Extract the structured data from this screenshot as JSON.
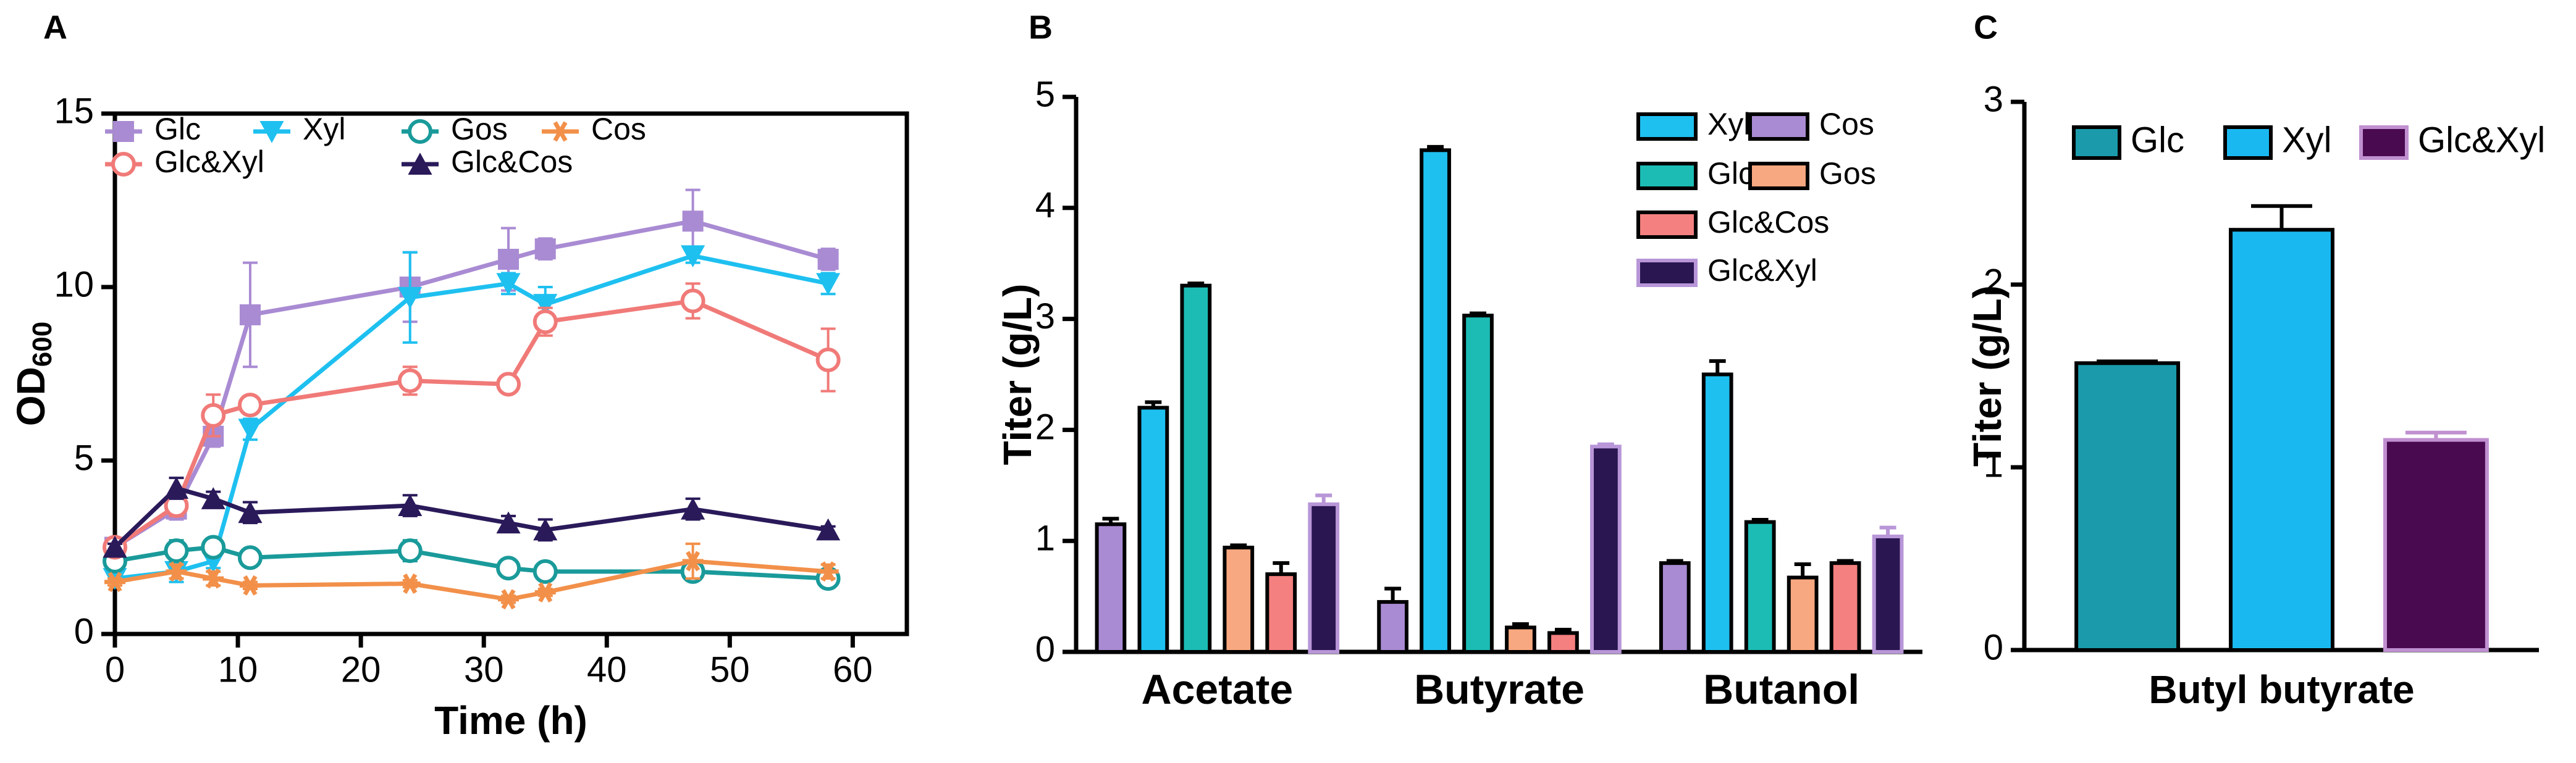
{
  "chart_data": [
    {
      "type": "line",
      "panel": "A",
      "xlabel": "Time (h)",
      "ylabel": "OD",
      "ylabel_sub": "600",
      "x": [
        0,
        5,
        8,
        11,
        24,
        32,
        35,
        47,
        58
      ],
      "xlim": [
        0,
        64.4
      ],
      "xticks": [
        0,
        10,
        20,
        30,
        40,
        50,
        60
      ],
      "ylim": [
        0,
        15
      ],
      "yticks": [
        0,
        5,
        10,
        15
      ],
      "series": [
        {
          "name": "Glc",
          "color": "#a98bd3",
          "marker": "square",
          "values": [
            2.5,
            3.6,
            5.7,
            9.2,
            10.0,
            10.8,
            11.1,
            11.9,
            10.8
          ],
          "errors": [
            0.1,
            0.3,
            0.3,
            1.5,
            1.0,
            0.9,
            0.3,
            0.9,
            0.3
          ]
        },
        {
          "name": "Xyl",
          "color": "#1ec0f0",
          "marker": "triangle-down",
          "values": [
            1.6,
            1.8,
            2.1,
            5.9,
            9.7,
            10.1,
            9.5,
            10.9,
            10.1
          ],
          "errors": [
            0.1,
            0.3,
            0.2,
            0.3,
            1.3,
            0.3,
            0.5,
            0.2,
            0.3
          ]
        },
        {
          "name": "Gos",
          "color": "#1a9a9a",
          "marker": "circle",
          "values": [
            2.1,
            2.4,
            2.5,
            2.2,
            2.4,
            1.9,
            1.8,
            1.8,
            1.6
          ],
          "errors": [
            0.2,
            0.3,
            0.2,
            0.1,
            0.3,
            0.1,
            0.2,
            0.2,
            0.1
          ]
        },
        {
          "name": "Cos",
          "color": "#f2904a",
          "marker": "asterisk",
          "values": [
            1.5,
            1.8,
            1.6,
            1.4,
            1.45,
            1.0,
            1.2,
            2.1,
            1.8
          ],
          "errors": [
            0.1,
            0.2,
            0.2,
            0.1,
            0.1,
            0.1,
            0.1,
            0.5,
            0.2
          ]
        },
        {
          "name": "Glc&Xyl",
          "color": "#f07a78",
          "marker": "circle",
          "values": [
            2.5,
            3.7,
            6.3,
            6.6,
            7.3,
            7.2,
            9.0,
            9.6,
            7.9
          ],
          "errors": [
            0.1,
            0.3,
            0.6,
            0.2,
            0.4,
            0.1,
            0.4,
            0.5,
            0.9
          ]
        },
        {
          "name": "Glc&Cos",
          "color": "#2a1a5a",
          "marker": "triangle-up",
          "values": [
            2.5,
            4.2,
            3.9,
            3.5,
            3.7,
            3.2,
            3.0,
            3.6,
            3.0
          ],
          "errors": [
            0.1,
            0.3,
            0.2,
            0.3,
            0.3,
            0.2,
            0.3,
            0.3,
            0.1
          ]
        }
      ]
    },
    {
      "type": "bar",
      "panel": "B",
      "ylabel": "Titer (g/L)",
      "categories": [
        "Acetate",
        "Butyrate",
        "Butanol"
      ],
      "ylim": [
        0,
        5
      ],
      "yticks": [
        0,
        1,
        2,
        3,
        4,
        5
      ],
      "series": [
        {
          "name": "Cos",
          "color": "#a98bd3",
          "edgecolor": "#000000",
          "values": [
            1.15,
            0.45,
            0.8
          ],
          "errors": [
            0.05,
            0.12,
            0.02
          ]
        },
        {
          "name": "Xyl",
          "color": "#1ec0f0",
          "edgecolor": "#000000",
          "values": [
            2.2,
            4.52,
            2.5
          ],
          "errors": [
            0.05,
            0.03,
            0.12
          ]
        },
        {
          "name": "Glc",
          "color": "#1cbcb4",
          "edgecolor": "#000000",
          "values": [
            3.3,
            3.03,
            1.17
          ],
          "errors": [
            0.02,
            0.02,
            0.02
          ]
        },
        {
          "name": "Gos",
          "color": "#f8a880",
          "edgecolor": "#000000",
          "values": [
            0.94,
            0.22,
            0.67
          ],
          "errors": [
            0.02,
            0.03,
            0.12
          ]
        },
        {
          "name": "Glc&Cos",
          "color": "#f48080",
          "edgecolor": "#000000",
          "values": [
            0.7,
            0.17,
            0.8
          ],
          "errors": [
            0.1,
            0.03,
            0.02
          ]
        },
        {
          "name": "Glc&Xyl",
          "color": "#2a1650",
          "edgecolor": "#b896d8",
          "values": [
            1.33,
            1.85,
            1.04
          ],
          "errors": [
            0.08,
            0.02,
            0.08
          ]
        }
      ]
    },
    {
      "type": "bar",
      "panel": "C",
      "ylabel": "Titer (g/L)",
      "categories": [
        "Butyl butyrate"
      ],
      "ylim": [
        0,
        3
      ],
      "yticks": [
        0,
        1,
        2,
        3
      ],
      "series": [
        {
          "name": "Glc",
          "color": "#1a9aaa",
          "edgecolor": "#000000",
          "values": [
            1.57
          ],
          "errors": [
            0.01
          ]
        },
        {
          "name": "Xyl",
          "color": "#1ab8f0",
          "edgecolor": "#000000",
          "values": [
            2.3
          ],
          "errors": [
            0.13
          ]
        },
        {
          "name": "Glc&Xyl",
          "color": "#4a0a50",
          "edgecolor": "#c090d0",
          "values": [
            1.15
          ],
          "errors": [
            0.04
          ]
        }
      ]
    }
  ]
}
